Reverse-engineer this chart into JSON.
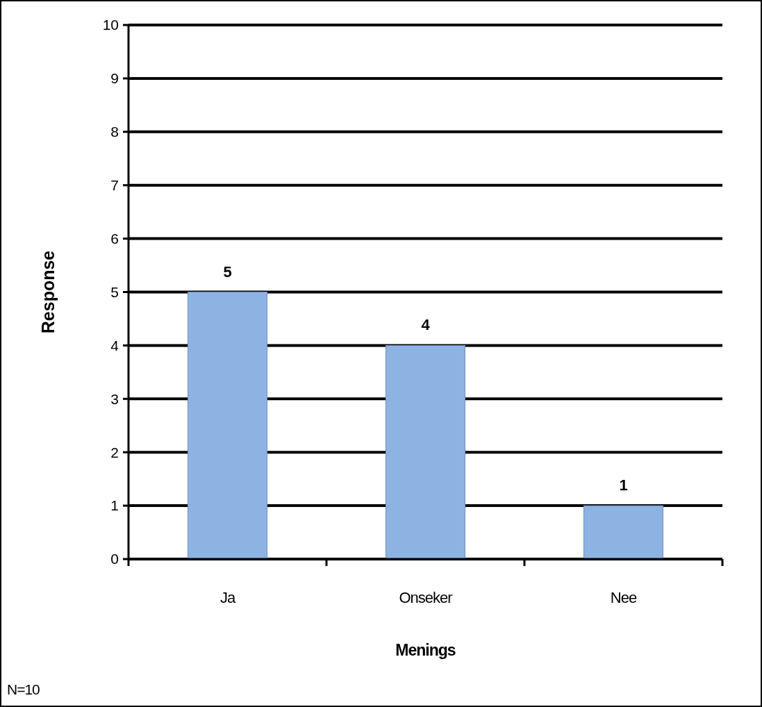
{
  "chart_data": {
    "type": "bar",
    "xlabel": "Menings",
    "ylabel": "Response",
    "categories": [
      "Ja",
      "Onseker",
      "Nee"
    ],
    "values": [
      5,
      4,
      1
    ],
    "color": "#8db3e2",
    "ylim": [
      0,
      10
    ],
    "yticks": [
      0,
      1,
      2,
      3,
      4,
      5,
      6,
      7,
      8,
      9,
      10
    ],
    "grid": "y",
    "data_labels": true,
    "annotations": [
      "N=10"
    ]
  }
}
